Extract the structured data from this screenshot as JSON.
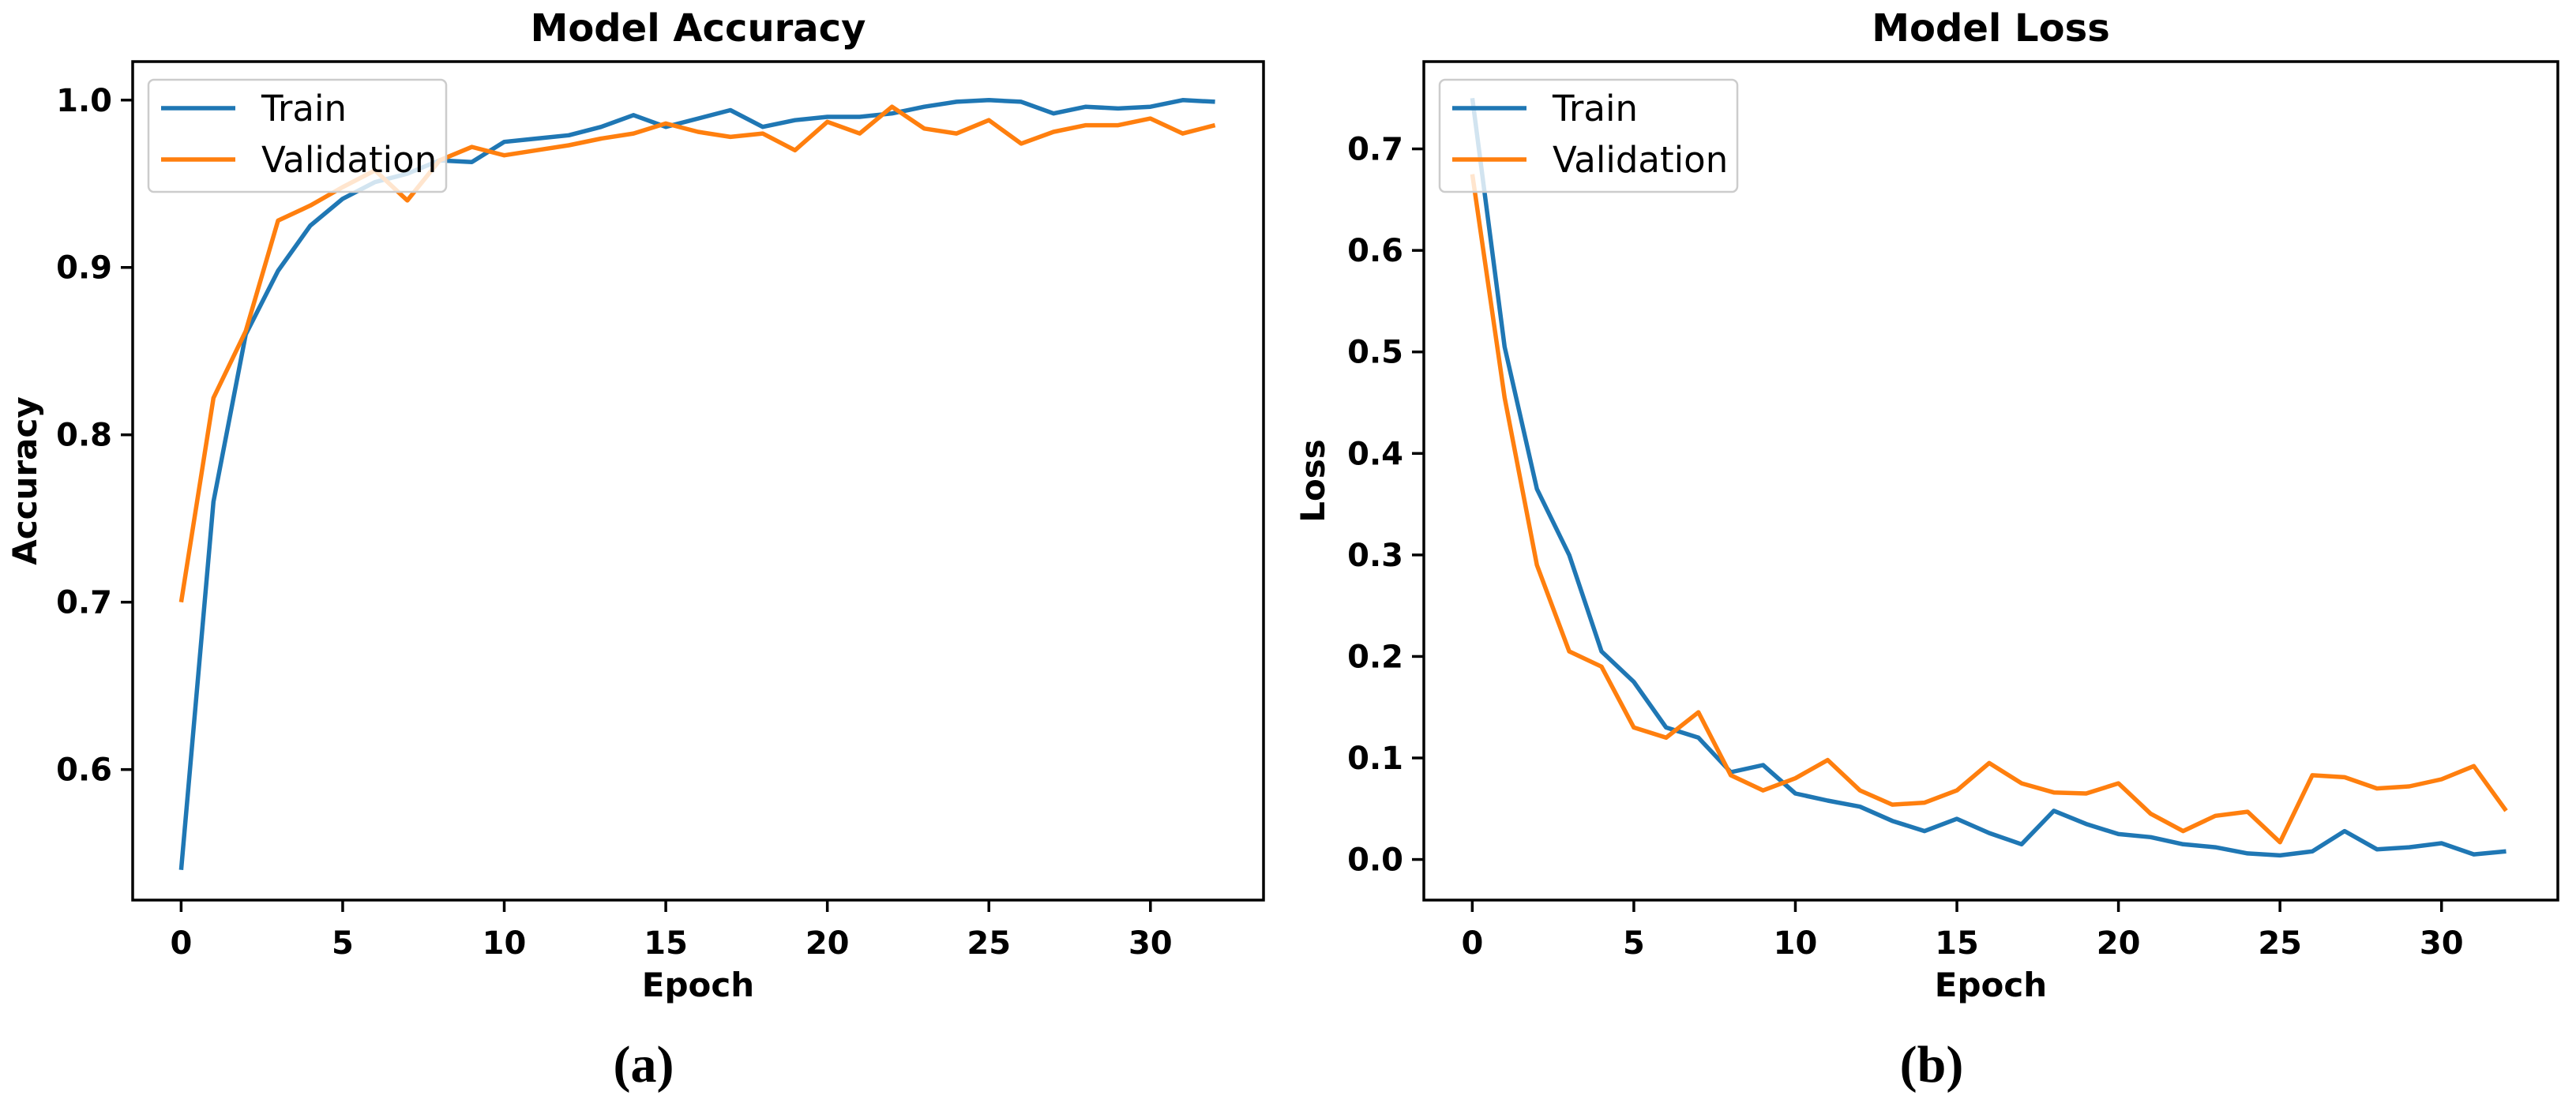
{
  "colors": {
    "train": "#1f77b4",
    "validation": "#ff7f0e",
    "spine": "#000000",
    "legend_border": "#cccccc",
    "legend_fill_opacity": 0.8
  },
  "legend": {
    "position": "upper left",
    "entries": [
      "Train",
      "Validation"
    ]
  },
  "chart_data": [
    {
      "type": "line",
      "title": "Model Accuracy",
      "xlabel": "Epoch",
      "ylabel": "Accuracy",
      "caption": "(a)",
      "grid": false,
      "x": [
        0,
        1,
        2,
        3,
        4,
        5,
        6,
        7,
        8,
        9,
        10,
        11,
        12,
        13,
        14,
        15,
        16,
        17,
        18,
        19,
        20,
        21,
        22,
        23,
        24,
        25,
        26,
        27,
        28,
        29,
        30,
        31,
        32
      ],
      "xticks": [
        0,
        5,
        10,
        15,
        20,
        25,
        30
      ],
      "xtick_labels": [
        "0",
        "5",
        "10",
        "15",
        "20",
        "25",
        "30"
      ],
      "yticks": [
        0.6,
        0.7,
        0.8,
        0.9,
        1.0
      ],
      "ytick_labels": [
        "0.6",
        "0.7",
        "0.8",
        "0.9",
        "1.0"
      ],
      "xlim": [
        -1.5,
        33.5
      ],
      "ylim": [
        0.522,
        1.023
      ],
      "legend_position": "upper left",
      "series": [
        {
          "name": "Train",
          "color": "#1f77b4",
          "values": [
            0.54,
            0.76,
            0.86,
            0.898,
            0.925,
            0.941,
            0.951,
            0.956,
            0.964,
            0.963,
            0.975,
            0.977,
            0.979,
            0.984,
            0.991,
            0.984,
            0.989,
            0.994,
            0.984,
            0.988,
            0.99,
            0.99,
            0.992,
            0.996,
            0.999,
            1.0,
            0.999,
            0.992,
            0.996,
            0.995,
            0.996,
            1.0,
            0.999
          ]
        },
        {
          "name": "Validation",
          "color": "#ff7f0e",
          "values": [
            0.7,
            0.822,
            0.862,
            0.928,
            0.937,
            0.948,
            0.958,
            0.94,
            0.964,
            0.972,
            0.967,
            0.97,
            0.973,
            0.977,
            0.98,
            0.986,
            0.981,
            0.978,
            0.98,
            0.97,
            0.987,
            0.98,
            0.996,
            0.983,
            0.98,
            0.988,
            0.974,
            0.981,
            0.985,
            0.985,
            0.989,
            0.98,
            0.985
          ]
        }
      ]
    },
    {
      "type": "line",
      "title": "Model Loss",
      "xlabel": "Epoch",
      "ylabel": "Loss",
      "caption": "(b)",
      "grid": false,
      "x": [
        0,
        1,
        2,
        3,
        4,
        5,
        6,
        7,
        8,
        9,
        10,
        11,
        12,
        13,
        14,
        15,
        16,
        17,
        18,
        19,
        20,
        21,
        22,
        23,
        24,
        25,
        26,
        27,
        28,
        29,
        30,
        31,
        32
      ],
      "xticks": [
        0,
        5,
        10,
        15,
        20,
        25,
        30
      ],
      "xtick_labels": [
        "0",
        "5",
        "10",
        "15",
        "20",
        "25",
        "30"
      ],
      "yticks": [
        0.0,
        0.1,
        0.2,
        0.3,
        0.4,
        0.5,
        0.6,
        0.7
      ],
      "ytick_labels": [
        "0.0",
        "0.1",
        "0.2",
        "0.3",
        "0.4",
        "0.5",
        "0.6",
        "0.7"
      ],
      "xlim": [
        -1.5,
        33.6
      ],
      "ylim": [
        -0.04,
        0.786
      ],
      "legend_position": "upper left",
      "series": [
        {
          "name": "Train",
          "color": "#1f77b4",
          "values": [
            0.75,
            0.505,
            0.365,
            0.3,
            0.205,
            0.175,
            0.13,
            0.12,
            0.086,
            0.093,
            0.065,
            0.058,
            0.052,
            0.038,
            0.028,
            0.04,
            0.026,
            0.015,
            0.048,
            0.035,
            0.025,
            0.022,
            0.015,
            0.012,
            0.006,
            0.004,
            0.008,
            0.028,
            0.01,
            0.012,
            0.016,
            0.005,
            0.008
          ]
        },
        {
          "name": "Validation",
          "color": "#ff7f0e",
          "values": [
            0.675,
            0.455,
            0.29,
            0.205,
            0.19,
            0.13,
            0.12,
            0.145,
            0.083,
            0.068,
            0.08,
            0.098,
            0.068,
            0.054,
            0.056,
            0.068,
            0.095,
            0.075,
            0.066,
            0.065,
            0.075,
            0.045,
            0.028,
            0.043,
            0.047,
            0.017,
            0.083,
            0.081,
            0.07,
            0.072,
            0.079,
            0.092,
            0.048
          ]
        }
      ]
    }
  ]
}
